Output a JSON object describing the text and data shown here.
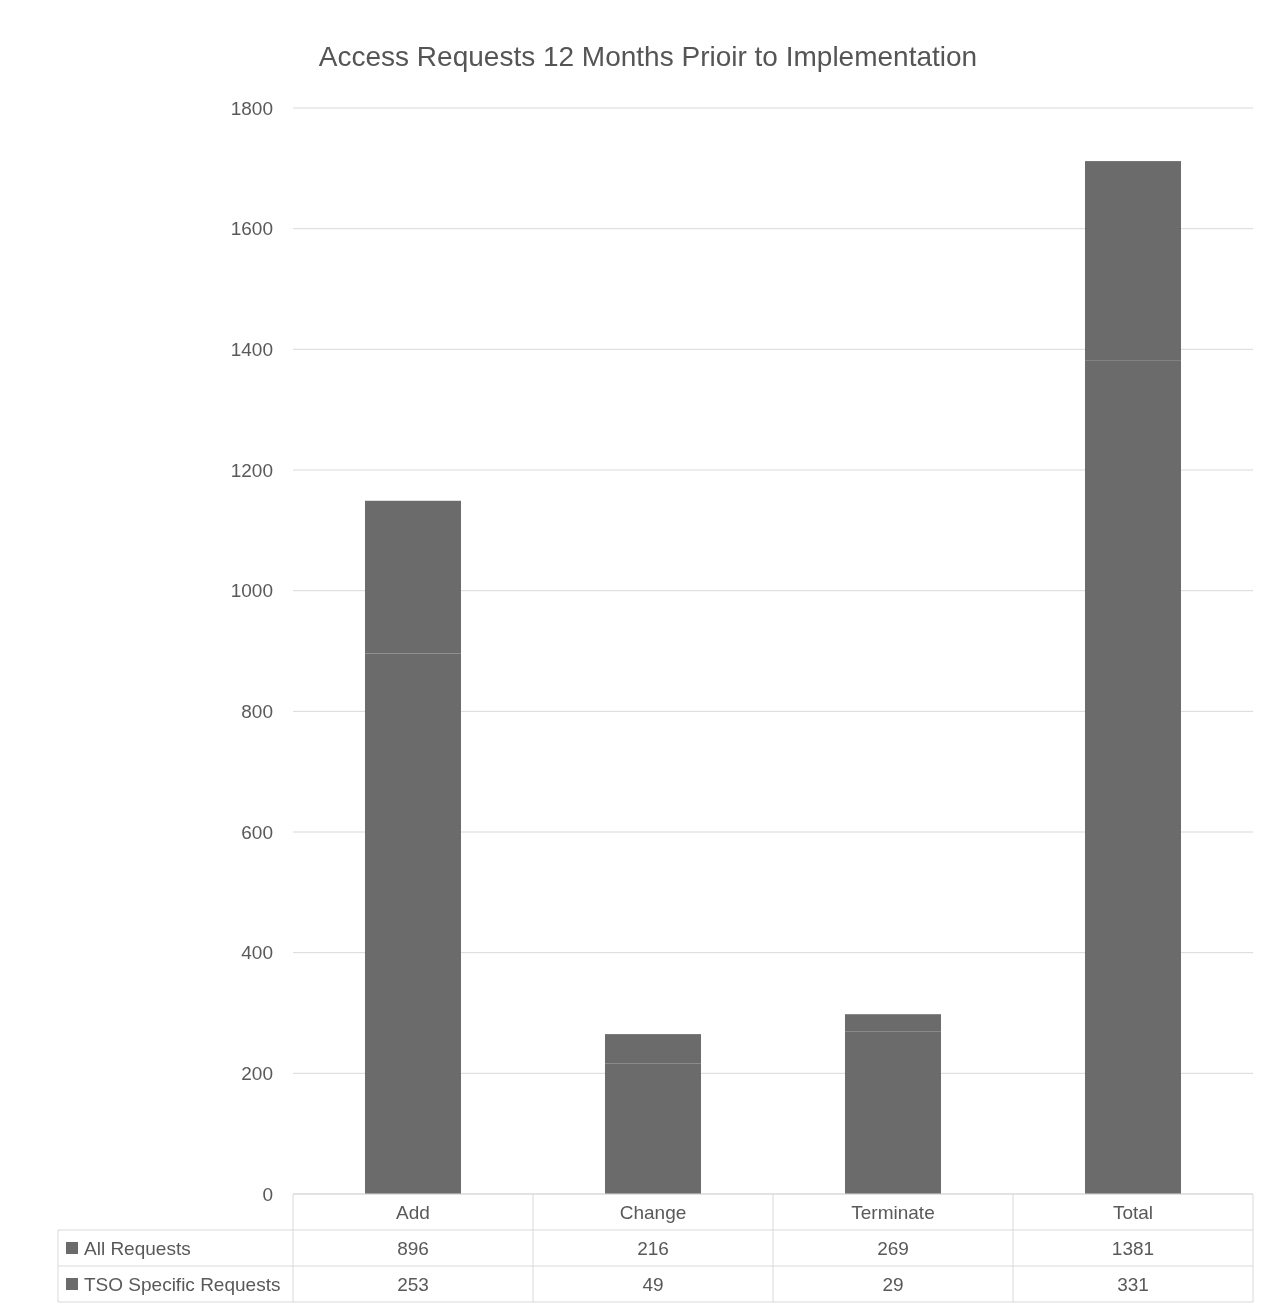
{
  "chart_data": {
    "type": "bar",
    "title": "Access Requests 12 Months Prioir to Implementation",
    "categories": [
      "Add",
      "Change",
      "Terminate",
      "Total"
    ],
    "stacked": true,
    "series": [
      {
        "name": "All Requests",
        "color": "#6b6b6b",
        "values": [
          896,
          216,
          269,
          1381
        ]
      },
      {
        "name": "TSO Specific Requests",
        "color": "#6b6b6b",
        "values": [
          253,
          49,
          29,
          331
        ]
      }
    ],
    "ylim": [
      0,
      1800
    ],
    "yticks": [
      0,
      200,
      400,
      600,
      800,
      1000,
      1200,
      1400,
      1600,
      1800
    ],
    "grid": "y",
    "legend": "bottom",
    "data_labels": true
  }
}
